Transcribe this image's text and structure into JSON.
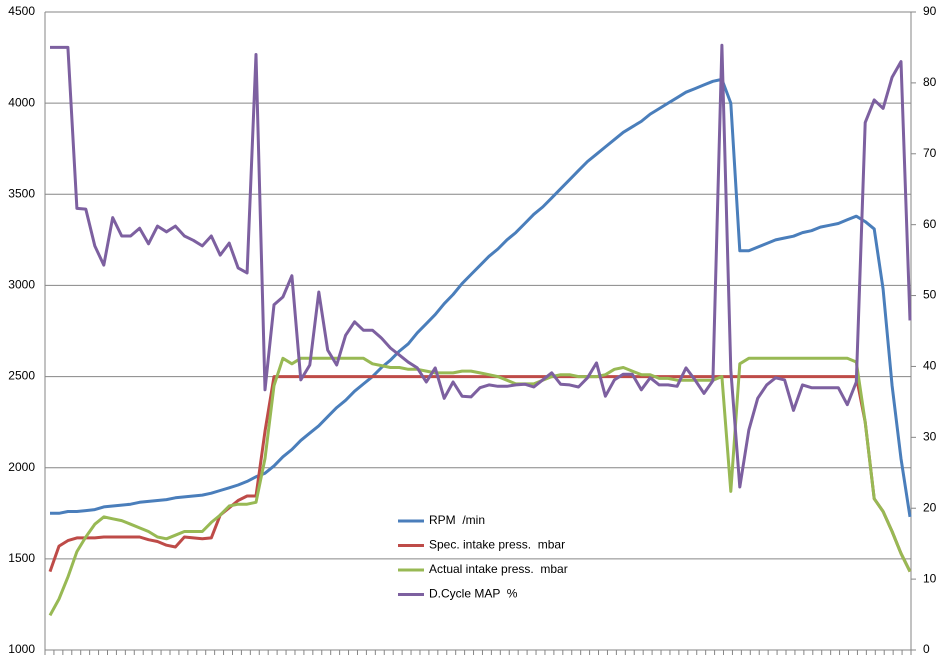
{
  "chart_data": {
    "type": "line",
    "series": [
      {
        "name": "RPM  /min",
        "color": "#4a7ebb",
        "values": [
          1750,
          1750,
          1760,
          1760,
          1765,
          1770,
          1785,
          1790,
          1795,
          1800,
          1810,
          1815,
          1820,
          1825,
          1835,
          1840,
          1845,
          1850,
          1860,
          1875,
          1890,
          1905,
          1925,
          1950,
          1970,
          2010,
          2060,
          2100,
          2150,
          2190,
          2230,
          2280,
          2330,
          2370,
          2420,
          2460,
          2500,
          2550,
          2590,
          2640,
          2680,
          2740,
          2790,
          2840,
          2900,
          2950,
          3010,
          3060,
          3110,
          3160,
          3200,
          3250,
          3290,
          3340,
          3390,
          3430,
          3480,
          3530,
          3580,
          3630,
          3680,
          3720,
          3760,
          3800,
          3840,
          3870,
          3900,
          3940,
          3970,
          4000,
          4030,
          4060,
          4080,
          4100,
          4120,
          4130,
          4000,
          3190,
          3190,
          3210,
          3230,
          3250,
          3260,
          3270,
          3290,
          3300,
          3320,
          3330,
          3340,
          3360,
          3380,
          3350,
          3310,
          2980,
          2450,
          2050,
          1730
        ]
      },
      {
        "name": "Spec. intake press.  mbar",
        "color": "#be4b48",
        "values": [
          1430,
          1570,
          1600,
          1615,
          1615,
          1615,
          1620,
          1620,
          1620,
          1620,
          1620,
          1605,
          1595,
          1575,
          1565,
          1620,
          1615,
          1610,
          1615,
          1740,
          1780,
          1820,
          1845,
          1845,
          2200,
          2500,
          2500,
          2500,
          2500,
          2500,
          2500,
          2500,
          2500,
          2500,
          2500,
          2500,
          2500,
          2500,
          2500,
          2500,
          2500,
          2500,
          2500,
          2500,
          2500,
          2500,
          2500,
          2500,
          2500,
          2500,
          2500,
          2500,
          2500,
          2500,
          2500,
          2500,
          2500,
          2500,
          2500,
          2500,
          2500,
          2500,
          2500,
          2500,
          2500,
          2500,
          2500,
          2500,
          2500,
          2500,
          2500,
          2500,
          2500,
          2500,
          2500,
          2500,
          2500,
          2500,
          2500,
          2500,
          2500,
          2500,
          2500,
          2500,
          2500,
          2500,
          2500,
          2500,
          2500,
          2500,
          2500,
          2250,
          1830,
          1760,
          1650,
          1530,
          1430
        ]
      },
      {
        "name": "Actual intake press.  mbar",
        "color": "#98b954",
        "values": [
          1190,
          1280,
          1400,
          1540,
          1620,
          1690,
          1730,
          1720,
          1710,
          1690,
          1670,
          1650,
          1620,
          1610,
          1630,
          1650,
          1650,
          1650,
          1700,
          1740,
          1790,
          1800,
          1800,
          1810,
          2050,
          2450,
          2600,
          2570,
          2600,
          2600,
          2600,
          2600,
          2600,
          2600,
          2600,
          2600,
          2570,
          2560,
          2550,
          2550,
          2540,
          2540,
          2530,
          2520,
          2520,
          2520,
          2530,
          2530,
          2520,
          2510,
          2500,
          2480,
          2460,
          2460,
          2460,
          2480,
          2500,
          2510,
          2510,
          2500,
          2500,
          2500,
          2510,
          2540,
          2550,
          2530,
          2510,
          2510,
          2490,
          2490,
          2480,
          2480,
          2480,
          2480,
          2480,
          2500,
          1870,
          2570,
          2600,
          2600,
          2600,
          2600,
          2600,
          2600,
          2600,
          2600,
          2600,
          2600,
          2600,
          2600,
          2580,
          2250,
          1830,
          1760,
          1650,
          1530,
          1430
        ]
      },
      {
        "name": "D.Cycle MAP  %",
        "color": "#7d60a0",
        "axis": "y2",
        "values": [
          85,
          85,
          85,
          62.3,
          62.2,
          57,
          54.3,
          61,
          58.4,
          58.4,
          59.5,
          57.3,
          59.8,
          59,
          59.8,
          58.4,
          57.8,
          57,
          58.4,
          55.7,
          57.4,
          53.9,
          53.2,
          84,
          36.7,
          48.7,
          49.8,
          52.8,
          38.1,
          40.2,
          50.5,
          42.3,
          40.2,
          44.4,
          46.3,
          45.1,
          45.1,
          44,
          42.6,
          41.6,
          40.6,
          39.8,
          37.8,
          39.8,
          35.5,
          37.8,
          35.8,
          35.7,
          37,
          37.4,
          37.2,
          37.2,
          37.4,
          37.5,
          37.1,
          38.1,
          39.1,
          37.5,
          37.4,
          37.1,
          38.4,
          40.5,
          35.8,
          38.1,
          38.9,
          38.9,
          36.7,
          38.4,
          37.4,
          37.4,
          37.2,
          39.8,
          38.1,
          36.2,
          38,
          85.3,
          39.5,
          23,
          31,
          35.5,
          37.4,
          38.4,
          38.1,
          33.8,
          37.4,
          37,
          37,
          37,
          37,
          34.6,
          37.8,
          74.4,
          77.6,
          76.4,
          80.8,
          83,
          46.5
        ]
      }
    ],
    "ylim": [
      1000,
      4500
    ],
    "yticks": [
      1000,
      1500,
      2000,
      2500,
      3000,
      3500,
      4000,
      4500
    ],
    "y2lim": [
      0,
      90
    ],
    "y2ticks": [
      0,
      10,
      20,
      30,
      40,
      50,
      60,
      70,
      80,
      90
    ],
    "grid": true
  }
}
